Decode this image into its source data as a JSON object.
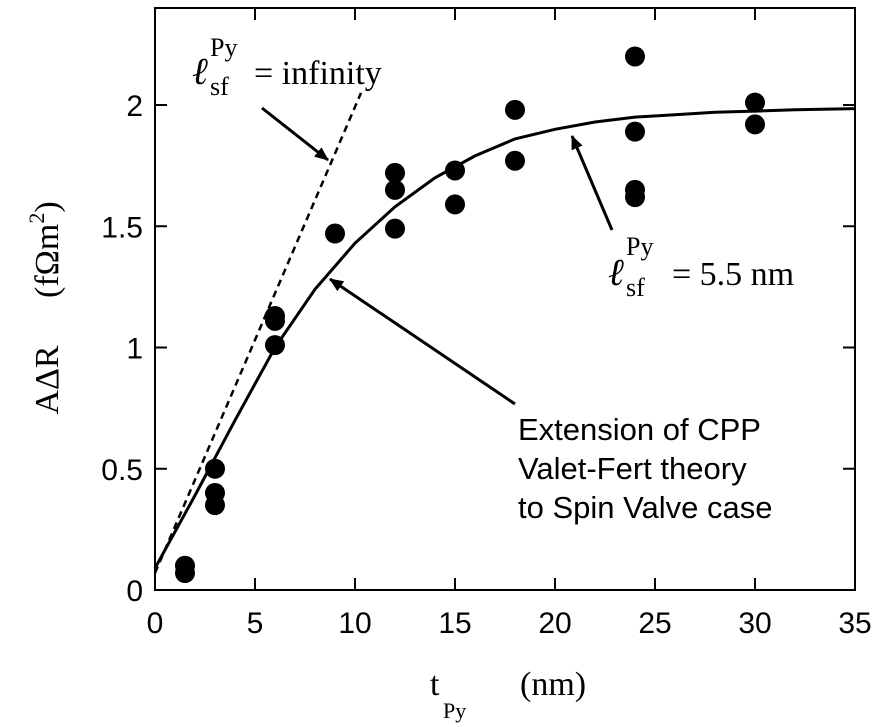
{
  "chart_data": {
    "type": "scatter",
    "title": "",
    "xlabel": {
      "main": "t",
      "sub": "Py",
      "unit": "(nm)"
    },
    "ylabel": {
      "main": "AΔR",
      "unit_open": "(fΩm",
      "unit_sup": "2",
      "unit_close": ")"
    },
    "xlim": [
      0,
      35
    ],
    "ylim": [
      0,
      2.4
    ],
    "xticks": [
      0,
      5,
      10,
      15,
      20,
      25,
      30,
      35
    ],
    "yticks": [
      0,
      0.5,
      1,
      1.5,
      2
    ],
    "xtick_labels": [
      "0",
      "5",
      "10",
      "15",
      "20",
      "25",
      "30",
      "35"
    ],
    "ytick_labels": [
      "0",
      "0.5",
      "1",
      "1.5",
      "2"
    ],
    "grid": false,
    "series": [
      {
        "style": "markers",
        "x": [
          1.5,
          1.5,
          3,
          3,
          3,
          6,
          6,
          6,
          9,
          12,
          12,
          12,
          15,
          15,
          18,
          18,
          24,
          24,
          24,
          24,
          30,
          30
        ],
        "y": [
          0.07,
          0.1,
          0.35,
          0.4,
          0.5,
          1.01,
          1.11,
          1.13,
          1.47,
          1.49,
          1.65,
          1.72,
          1.59,
          1.73,
          1.77,
          1.98,
          1.62,
          1.65,
          1.89,
          2.2,
          1.92,
          2.01
        ]
      },
      {
        "style": "solid-line",
        "x": [
          0,
          2,
          4,
          6,
          8,
          10,
          12,
          14,
          16,
          18,
          20,
          22,
          24,
          26,
          28,
          30,
          32,
          35
        ],
        "y": [
          0.09,
          0.39,
          0.7,
          1.0,
          1.24,
          1.43,
          1.58,
          1.7,
          1.79,
          1.86,
          1.9,
          1.93,
          1.95,
          1.96,
          1.97,
          1.975,
          1.98,
          1.985
        ]
      },
      {
        "style": "dashed-line",
        "x": [
          0,
          10.3
        ],
        "y": [
          0.07,
          2.05
        ]
      }
    ],
    "annotations": {
      "infinity": {
        "ell": "ℓ",
        "sub": "sf",
        "sup": "Py",
        "text": "= infinity"
      },
      "sf55": {
        "ell": "ℓ",
        "sub": "sf",
        "sup": "Py",
        "text": "= 5.5 nm"
      },
      "theory": [
        "Extension of CPP",
        "Valet-Fert theory",
        "to Spin Valve case"
      ]
    }
  }
}
